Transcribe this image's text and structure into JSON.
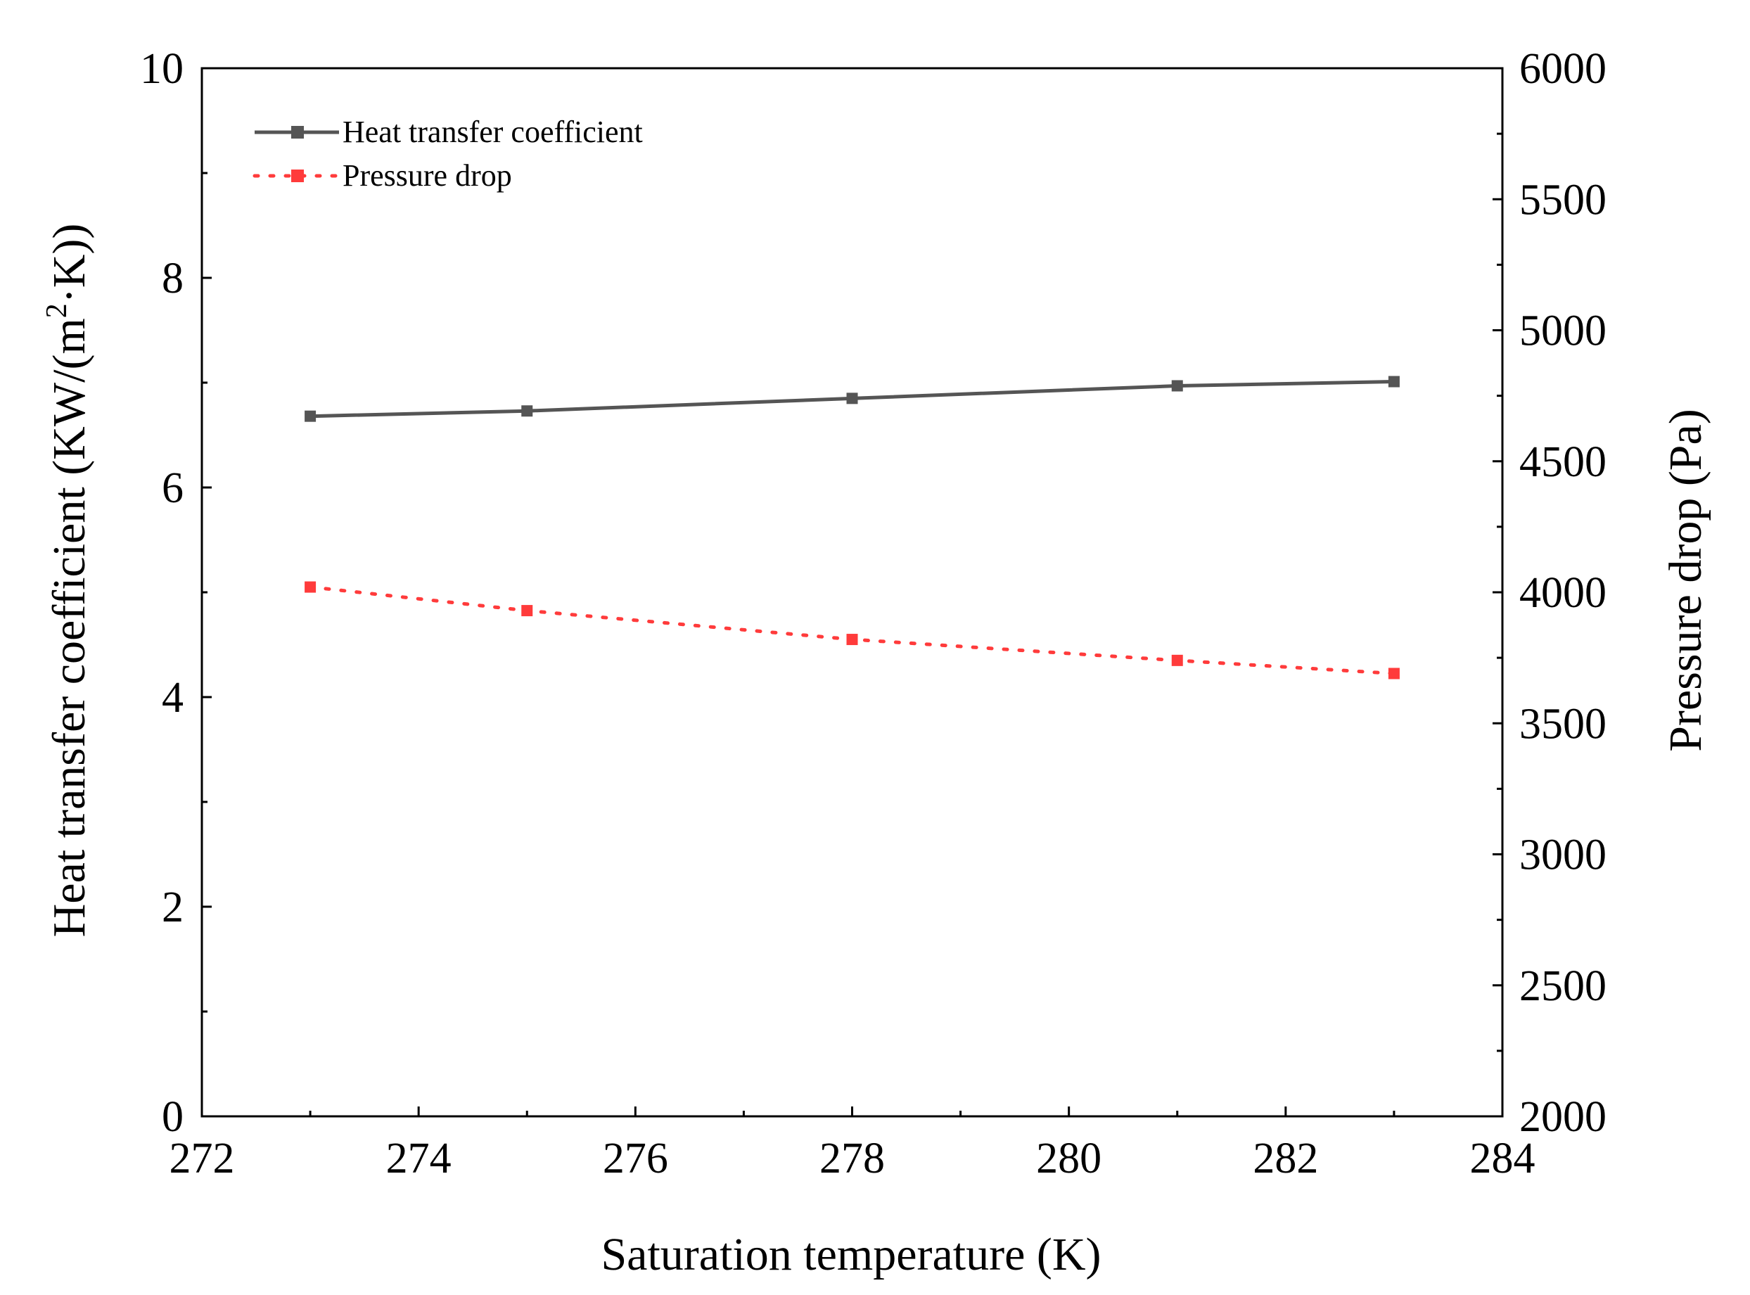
{
  "chart_data": {
    "type": "line",
    "x": [
      273,
      275,
      278,
      281,
      283
    ],
    "xlabel": "Saturation temperature (K)",
    "xlim": [
      272,
      284
    ],
    "x_ticks": [
      272,
      274,
      276,
      278,
      280,
      282,
      284
    ],
    "x_tick_labels": [
      "272",
      "274",
      "276",
      "278",
      "280",
      "282",
      "284"
    ],
    "ylabel_left": {
      "before_superscript": "Heat transfer coefficient (KW/(m",
      "superscript": "2",
      "after_superscript": "·K))"
    },
    "ylim_left": [
      0,
      10
    ],
    "y_ticks_left": [
      0,
      2,
      4,
      6,
      8,
      10
    ],
    "y_tick_labels_left": [
      "0",
      "2",
      "4",
      "6",
      "8",
      "10"
    ],
    "ylabel_right": "Pressure drop (Pa)",
    "ylim_right": [
      2000,
      6000
    ],
    "y_ticks_right": [
      2000,
      2500,
      3000,
      3500,
      4000,
      4500,
      5000,
      5500,
      6000
    ],
    "y_tick_labels_right": [
      "2000",
      "2500",
      "3000",
      "3500",
      "4000",
      "4500",
      "5000",
      "5500",
      "6000"
    ],
    "series": [
      {
        "name": "Heat transfer coefficient",
        "axis": "left",
        "values": [
          6.68,
          6.73,
          6.85,
          6.97,
          7.01
        ],
        "color": "#555555",
        "line_style": "solid",
        "marker": "square"
      },
      {
        "name": "Pressure drop",
        "axis": "right",
        "values": [
          4020,
          3930,
          3820,
          3740,
          3690
        ],
        "color": "#ff3b3b",
        "line_style": "dotted",
        "marker": "square"
      }
    ],
    "legend_position": "top-left",
    "grid": false
  }
}
